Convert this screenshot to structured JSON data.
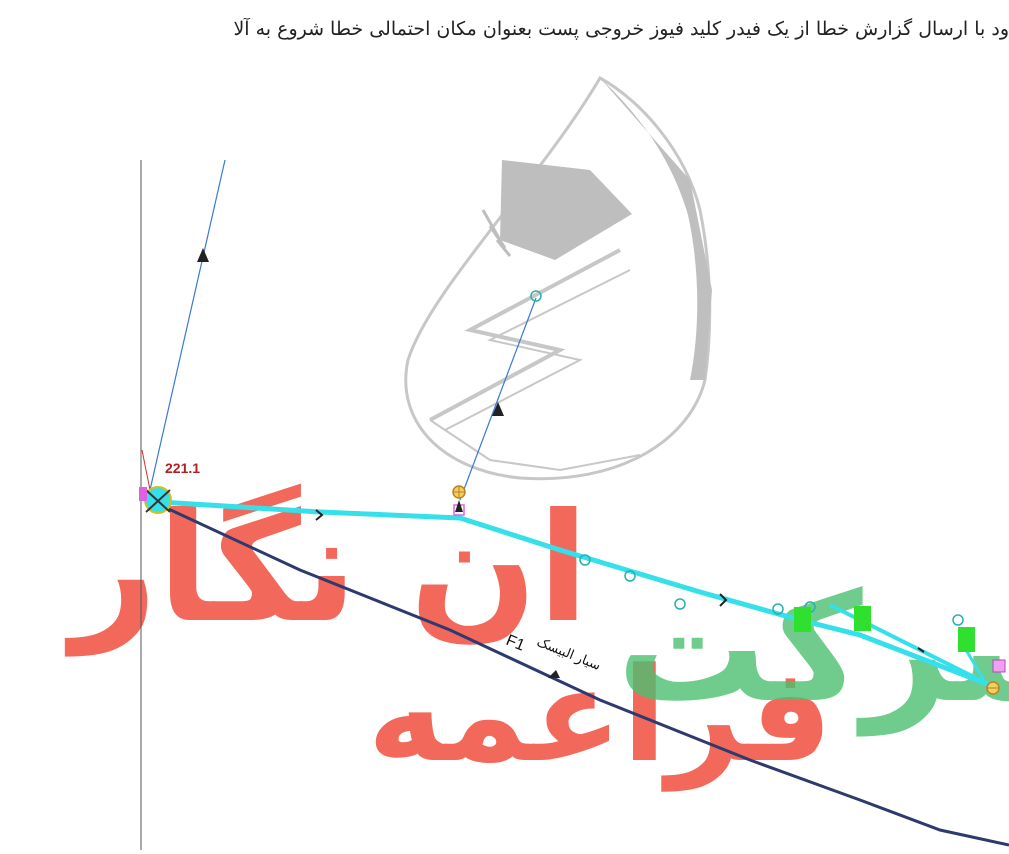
{
  "header": {
    "text": "ود با ارسال گزارش خطا از یک فیدر کلید فیوز خروجی پست بعنوان مکان احتمالی خطا شروع به آلا"
  },
  "diagram": {
    "node_label": "221.1",
    "feeder_id": "F1",
    "feeder_name": "سیار البیسک",
    "colors": {
      "feeder_line": "#2e3a6e",
      "fault_path": "#35e0ea",
      "branch_line": "#3a78d6",
      "switch_box": "#2fe02f",
      "node_label": "#b02020"
    }
  },
  "watermark": {
    "text_red": "ان نگار",
    "text_green": "شرکت",
    "text_red2": "فراعمه",
    "logo": "electricity-company-logo"
  }
}
